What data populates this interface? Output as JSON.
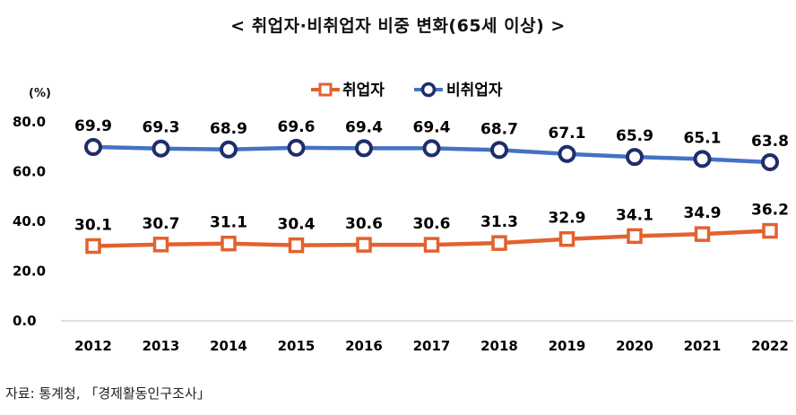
{
  "chart_data": {
    "type": "line",
    "title": "< 취업자·비취업자 비중 변화(65세 이상) >",
    "unit_label": "(%)",
    "source": "자료: 통계청, 「경제활동인구조사」",
    "ylim": [
      0,
      80
    ],
    "yticks": [
      "0.0",
      "20.0",
      "40.0",
      "60.0",
      "80.0"
    ],
    "x": [
      "2012",
      "2013",
      "2014",
      "2015",
      "2016",
      "2017",
      "2018",
      "2019",
      "2020",
      "2021",
      "2022"
    ],
    "legend_position": "top-center",
    "grid": false,
    "series": [
      {
        "name": "취업자",
        "color": "#e2622f",
        "marker": "square",
        "values": [
          30.1,
          30.7,
          31.1,
          30.4,
          30.6,
          30.6,
          31.3,
          32.9,
          34.1,
          34.9,
          36.2
        ],
        "labels": [
          "30.1",
          "30.7",
          "31.1",
          "30.4",
          "30.6",
          "30.6",
          "31.3",
          "32.9",
          "34.1",
          "34.9",
          "36.2"
        ]
      },
      {
        "name": "비취업자",
        "color": "#4472c4",
        "marker_edge": "#1f2d6b",
        "marker": "circle",
        "values": [
          69.9,
          69.3,
          68.9,
          69.6,
          69.4,
          69.4,
          68.7,
          67.1,
          65.9,
          65.1,
          63.8
        ],
        "labels": [
          "69.9",
          "69.3",
          "68.9",
          "69.6",
          "69.4",
          "69.4",
          "68.7",
          "67.1",
          "65.9",
          "65.1",
          "63.8"
        ]
      }
    ]
  }
}
